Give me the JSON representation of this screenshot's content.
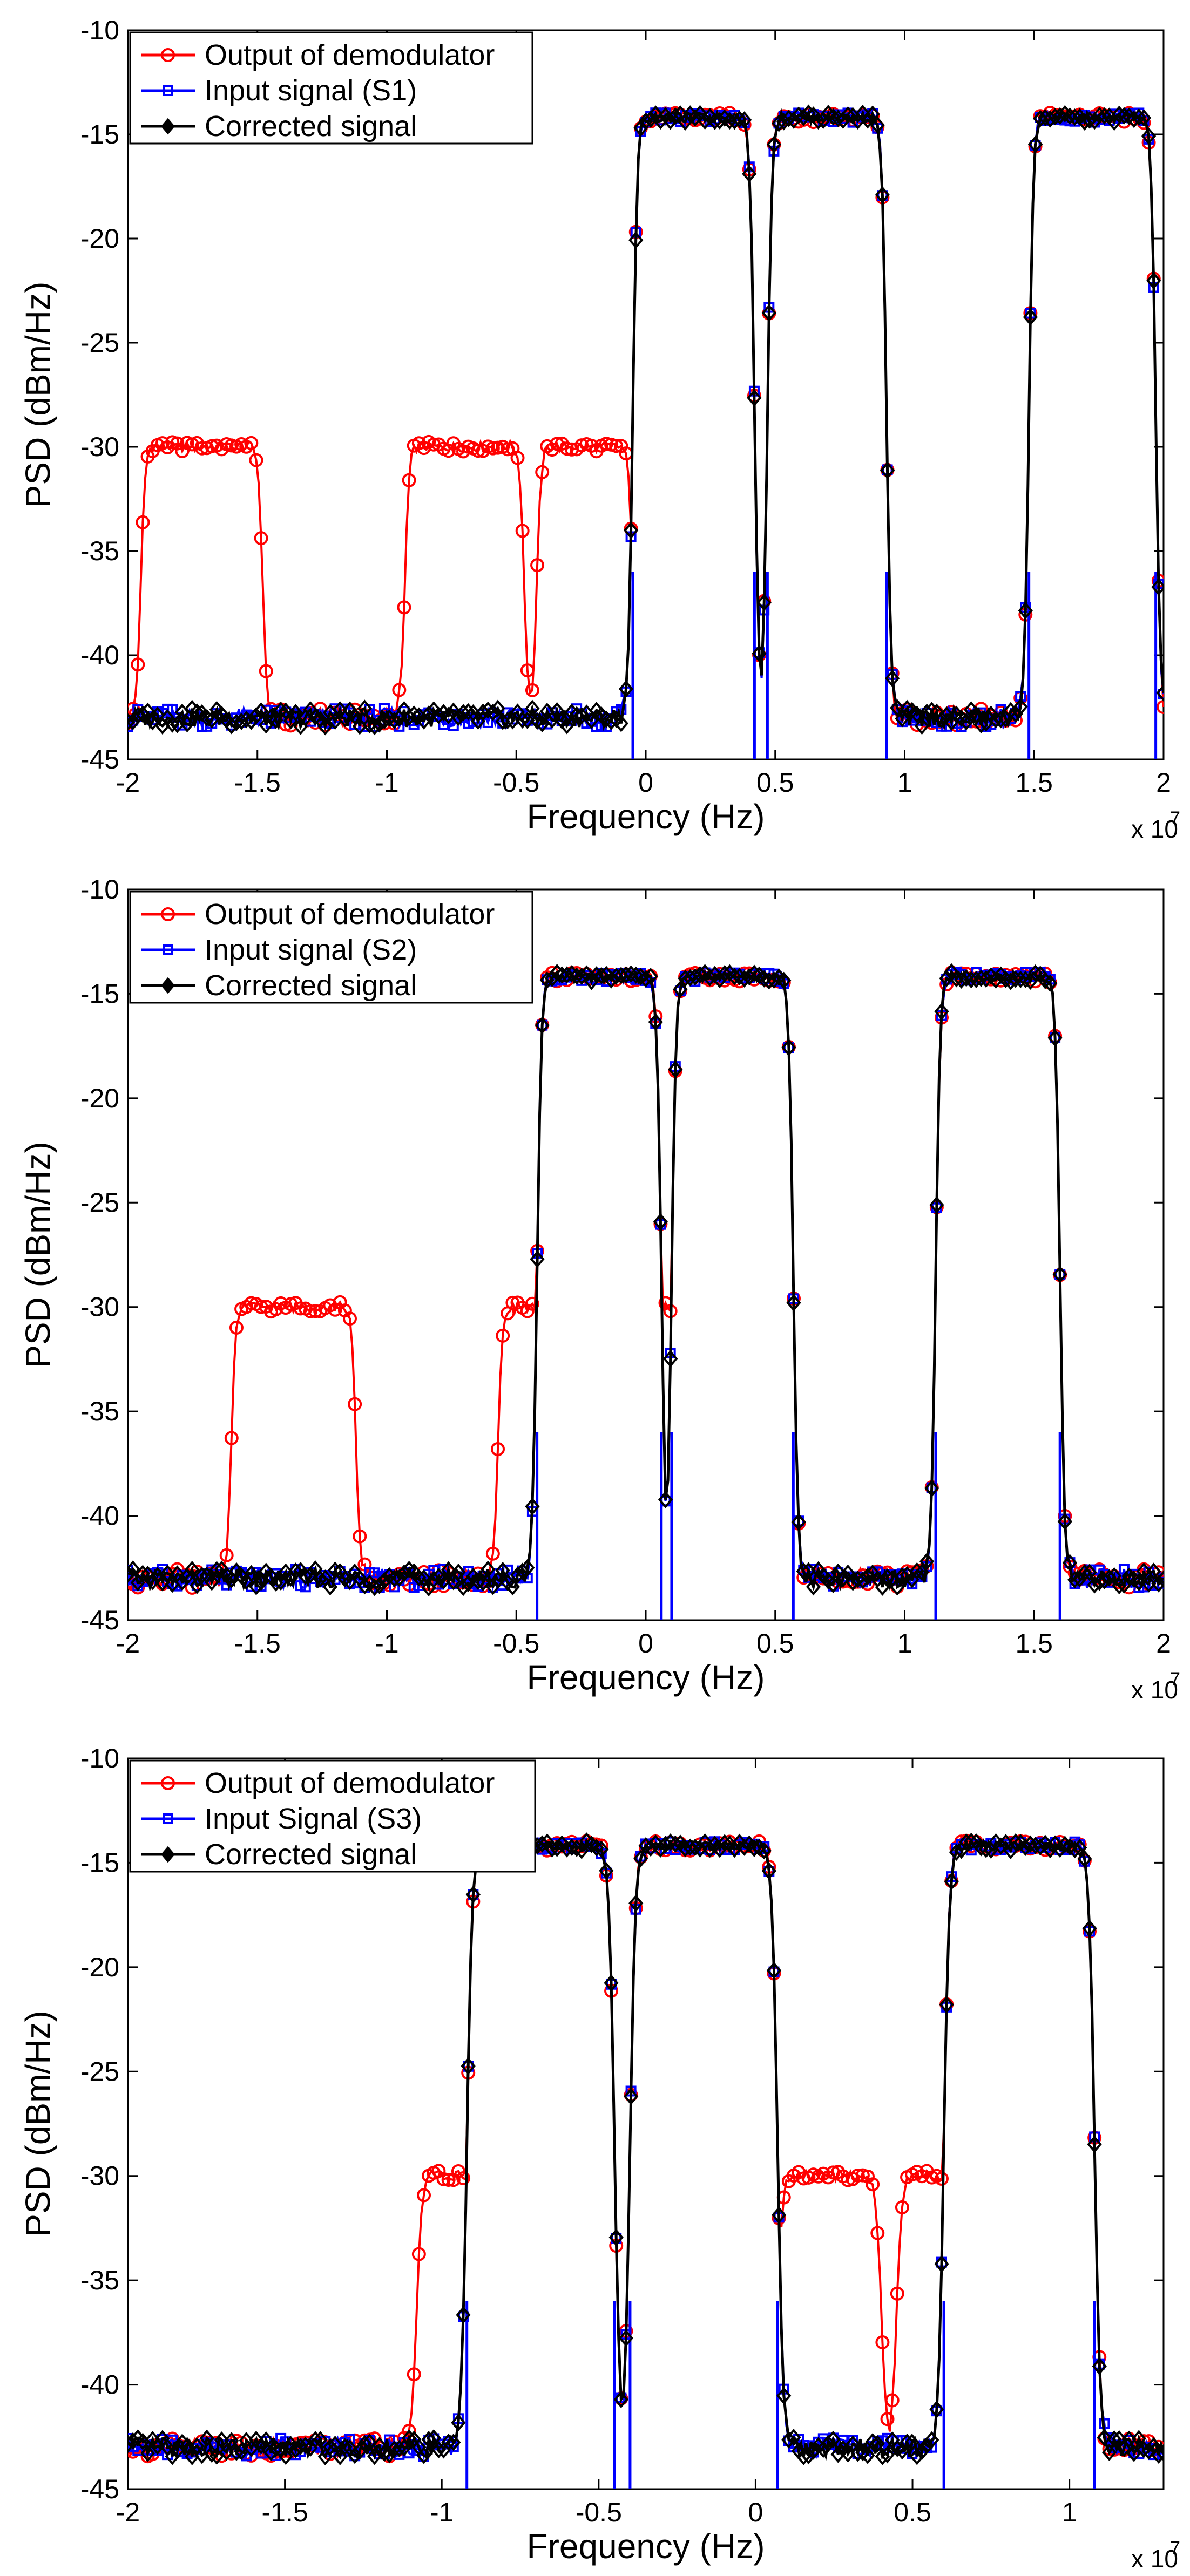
{
  "chart_data": [
    {
      "type": "line",
      "xlabel": "Frequency (Hz)",
      "ylabel": "PSD (dBm/Hz)",
      "x_scale_label": "x 10",
      "x_scale_exp": "7",
      "xlim": [
        -2.0,
        2.0
      ],
      "ylim": [
        -45,
        -10
      ],
      "xticks": [
        -2,
        -1.5,
        -1,
        -0.5,
        0,
        0.5,
        1,
        1.5,
        2
      ],
      "xtick_labels": [
        "-2",
        "-1.5",
        "-1",
        "-0.5",
        "0",
        "0.5",
        "1",
        "1.5",
        "2"
      ],
      "yticks": [
        -45,
        -40,
        -35,
        -30,
        -25,
        -20,
        -15,
        -10
      ],
      "ytick_labels": [
        "-45",
        "-40",
        "-35",
        "-30",
        "-25",
        "-20",
        "-15",
        "-10"
      ],
      "noise_floor": -43,
      "signal_bands": [
        [
          -0.05,
          0.42
        ],
        [
          0.47,
          0.93
        ],
        [
          1.48,
          1.97
        ]
      ],
      "demod_image_bands": [
        [
          -1.95,
          -1.48
        ],
        [
          -0.93,
          -0.47
        ],
        [
          -0.42,
          -0.05
        ]
      ],
      "series": [
        {
          "name": "Output of demodulator",
          "color": "#ff0000",
          "marker": "circle",
          "bands": [
            [
              -0.05,
              0.42,
              -14.2
            ],
            [
              0.47,
              0.93,
              -14.2
            ],
            [
              1.48,
              1.97,
              -14.2
            ],
            [
              -1.95,
              -1.48,
              -30
            ],
            [
              -0.93,
              -0.47,
              -30
            ],
            [
              -0.42,
              -0.05,
              -30
            ]
          ]
        },
        {
          "name": "Input signal (S1)",
          "color": "#0000ff",
          "marker": "square",
          "bands": [
            [
              -0.05,
              0.42,
              -14.2
            ],
            [
              0.47,
              0.93,
              -14.2
            ],
            [
              1.48,
              1.97,
              -14.2
            ]
          ]
        },
        {
          "name": "Corrected signal",
          "color": "#000000",
          "marker": "diamond",
          "bands": [
            [
              -0.05,
              0.42,
              -14.2
            ],
            [
              0.47,
              0.93,
              -14.2
            ],
            [
              1.48,
              1.97,
              -14.2
            ]
          ]
        }
      ]
    },
    {
      "type": "line",
      "xlabel": "Frequency (Hz)",
      "ylabel": "PSD (dBm/Hz)",
      "x_scale_label": "x 10",
      "x_scale_exp": "7",
      "xlim": [
        -2.0,
        2.0
      ],
      "ylim": [
        -45,
        -10
      ],
      "xticks": [
        -2,
        -1.5,
        -1,
        -0.5,
        0,
        0.5,
        1,
        1.5,
        2
      ],
      "xtick_labels": [
        "-2",
        "-1.5",
        "-1",
        "-0.5",
        "0",
        "0.5",
        "1",
        "1.5",
        "2"
      ],
      "yticks": [
        -45,
        -40,
        -35,
        -30,
        -25,
        -20,
        -15,
        -10
      ],
      "ytick_labels": [
        "-45",
        "-40",
        "-35",
        "-30",
        "-25",
        "-20",
        "-15",
        "-10"
      ],
      "noise_floor": -43,
      "signal_bands": [
        [
          -0.42,
          0.06
        ],
        [
          0.1,
          0.57
        ],
        [
          1.12,
          1.6
        ]
      ],
      "demod_image_bands": [
        [
          -1.6,
          -1.12
        ],
        [
          -0.57,
          -0.1
        ],
        [
          -0.06,
          0.42
        ]
      ],
      "series": [
        {
          "name": "Output of demodulator",
          "color": "#ff0000",
          "marker": "circle",
          "bands": [
            [
              -0.42,
              0.06,
              -14.2
            ],
            [
              0.1,
              0.57,
              -14.2
            ],
            [
              1.12,
              1.6,
              -14.2
            ],
            [
              -1.6,
              -1.12,
              -30
            ],
            [
              -0.57,
              -0.1,
              -30
            ],
            [
              -0.06,
              0.42,
              -30
            ]
          ]
        },
        {
          "name": "Input signal (S2)",
          "color": "#0000ff",
          "marker": "square",
          "bands": [
            [
              -0.42,
              0.06,
              -14.2
            ],
            [
              0.1,
              0.57,
              -14.2
            ],
            [
              1.12,
              1.6,
              -14.2
            ]
          ]
        },
        {
          "name": "Corrected signal",
          "color": "#000000",
          "marker": "diamond",
          "bands": [
            [
              -0.42,
              0.06,
              -14.2
            ],
            [
              0.1,
              0.57,
              -14.2
            ],
            [
              1.12,
              1.6,
              -14.2
            ]
          ]
        }
      ]
    },
    {
      "type": "line",
      "xlabel": "Frequency (Hz)",
      "ylabel": "PSD (dBm/Hz)",
      "x_scale_label": "x 10",
      "x_scale_exp": "7",
      "xlim": [
        -2.0,
        1.3
      ],
      "ylim": [
        -45,
        -10
      ],
      "xticks": [
        -2,
        -1.5,
        -1,
        -0.5,
        0,
        0.5,
        1
      ],
      "xtick_labels": [
        "-2",
        "-1.5",
        "-1",
        "-0.5",
        "0",
        "0.5",
        "1"
      ],
      "yticks": [
        -45,
        -40,
        -35,
        -30,
        -25,
        -20,
        -15,
        -10
      ],
      "ytick_labels": [
        "-45",
        "-40",
        "-35",
        "-30",
        "-25",
        "-20",
        "-15",
        "-10"
      ],
      "noise_floor": -43,
      "signal_bands": [
        [
          -0.92,
          -0.45
        ],
        [
          -0.4,
          0.07
        ],
        [
          0.6,
          1.08
        ]
      ],
      "demod_image_bands": [
        [
          -1.08,
          -0.6
        ],
        [
          0.07,
          0.4
        ],
        [
          0.45,
          0.92
        ]
      ],
      "series": [
        {
          "name": "Output of demodulator",
          "color": "#ff0000",
          "marker": "circle",
          "bands": [
            [
              -0.92,
              -0.45,
              -14.2
            ],
            [
              -0.4,
              0.07,
              -14.2
            ],
            [
              0.6,
              1.08,
              -14.2
            ],
            [
              -1.08,
              -0.6,
              -30
            ],
            [
              0.07,
              0.4,
              -30
            ],
            [
              0.45,
              0.92,
              -30
            ]
          ]
        },
        {
          "name": "Input Signal (S3)",
          "color": "#0000ff",
          "marker": "square",
          "bands": [
            [
              -0.92,
              -0.45,
              -14.2
            ],
            [
              -0.4,
              0.07,
              -14.2
            ],
            [
              0.6,
              1.08,
              -14.2
            ]
          ]
        },
        {
          "name": "Corrected signal",
          "color": "#000000",
          "marker": "diamond",
          "bands": [
            [
              -0.92,
              -0.45,
              -14.2
            ],
            [
              -0.4,
              0.07,
              -14.2
            ],
            [
              0.6,
              1.08,
              -14.2
            ]
          ]
        }
      ]
    }
  ]
}
